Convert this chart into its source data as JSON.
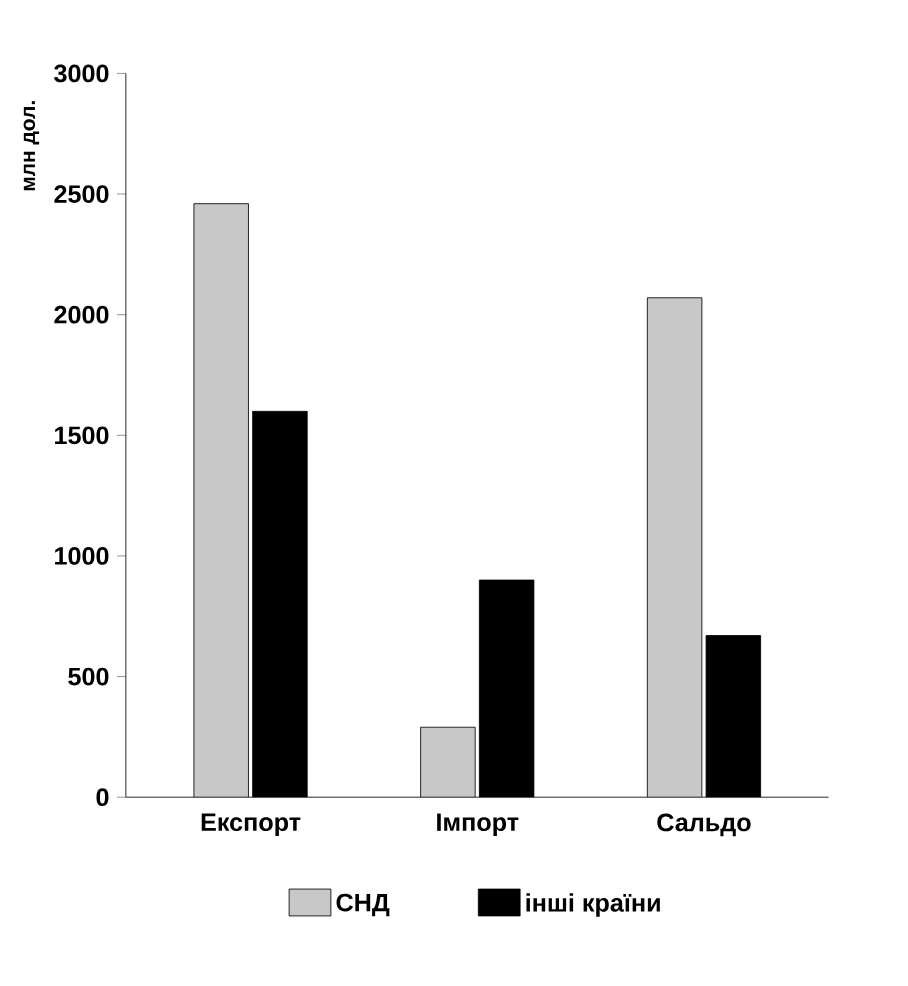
{
  "chart_data": {
    "type": "bar",
    "ylabel": "млн дол.",
    "categories": [
      "Експорт",
      "Імпорт",
      "Сальдо"
    ],
    "series": [
      {
        "name": "СНД",
        "color": "#c8c8c8",
        "values": [
          2460,
          290,
          2070
        ]
      },
      {
        "name": "інші країни",
        "color": "#000000",
        "values": [
          1600,
          900,
          670
        ]
      }
    ],
    "ylim": [
      0,
      3000
    ],
    "yticks": [
      0,
      500,
      1000,
      1500,
      2000,
      2500,
      3000
    ],
    "legend": "bottom",
    "grid": false
  }
}
